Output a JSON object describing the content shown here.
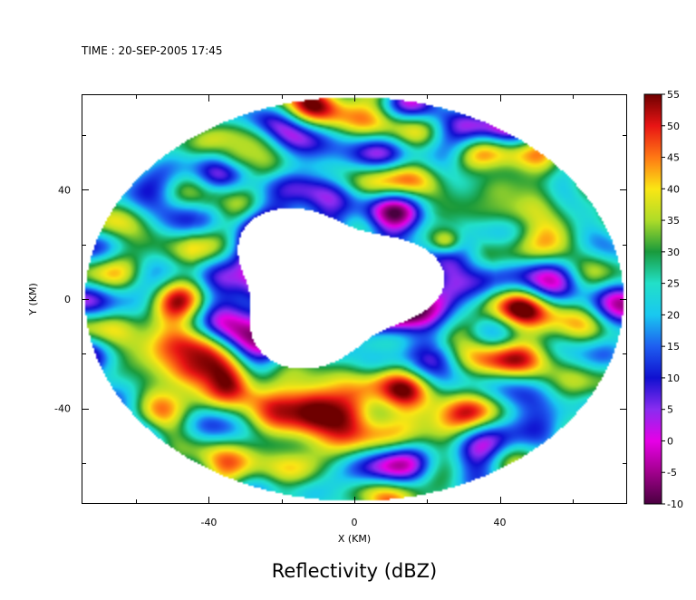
{
  "header": {
    "time_text": "TIME : 20-SEP-2005 17:45"
  },
  "chart_data": {
    "type": "heatmap",
    "title": "Reflectivity (dBZ)",
    "xlabel": "X (KM)",
    "ylabel": "Y (KM)",
    "xlim": [
      -75,
      75
    ],
    "ylim": [
      -75,
      75
    ],
    "x_ticks": [
      -40,
      0,
      40
    ],
    "y_ticks": [
      -40,
      0,
      40
    ],
    "grid": false,
    "legend": "right colorbar",
    "colorbar": {
      "min": -10,
      "max": 55,
      "tick_values": [
        55,
        50,
        45,
        40,
        35,
        30,
        25,
        20,
        15,
        10,
        5,
        0,
        -5,
        -10
      ],
      "tick_labels": [
        "55",
        "50",
        "45",
        "40",
        "35",
        "30",
        "25",
        "20",
        "15",
        "10",
        "5",
        "0",
        "-5",
        "-10"
      ]
    },
    "palette": [
      {
        "dbz": -10,
        "color": "#4a0040"
      },
      {
        "dbz": -5,
        "color": "#a0008c"
      },
      {
        "dbz": 0,
        "color": "#e600e6"
      },
      {
        "dbz": 5,
        "color": "#8a2cf0"
      },
      {
        "dbz": 10,
        "color": "#1010d0"
      },
      {
        "dbz": 15,
        "color": "#1e5ef0"
      },
      {
        "dbz": 20,
        "color": "#19c8f0"
      },
      {
        "dbz": 25,
        "color": "#22e0c8"
      },
      {
        "dbz": 30,
        "color": "#199a3c"
      },
      {
        "dbz": 35,
        "color": "#aedc28"
      },
      {
        "dbz": 40,
        "color": "#fae614"
      },
      {
        "dbz": 45,
        "color": "#ff7814"
      },
      {
        "dbz": 50,
        "color": "#e81414"
      },
      {
        "dbz": 55,
        "color": "#6e0000"
      }
    ],
    "field": {
      "radar_max_range_km": 74,
      "eye_center_km": [
        -7,
        5
      ],
      "eye_radius_km": 27,
      "features": [
        {
          "kind": "rainband",
          "center_km": [
            -10,
            -40
          ],
          "radius_km": 10,
          "dbz": 50
        },
        {
          "kind": "rainband",
          "center_km": [
            -45,
            -25
          ],
          "radius_km": 8,
          "dbz": 48
        },
        {
          "kind": "rainband",
          "center_km": [
            25,
            22
          ],
          "radius_km": 4,
          "dbz": 44
        },
        {
          "kind": "rainband",
          "center_km": [
            40,
            40
          ],
          "radius_km": 8,
          "dbz": 37
        },
        {
          "kind": "rainband",
          "center_km": [
            -30,
            55
          ],
          "radius_km": 6,
          "dbz": 36
        },
        {
          "kind": "inner_low",
          "center_km": [
            0,
            0
          ],
          "radius_km": 40,
          "dbz": 10
        }
      ]
    }
  }
}
